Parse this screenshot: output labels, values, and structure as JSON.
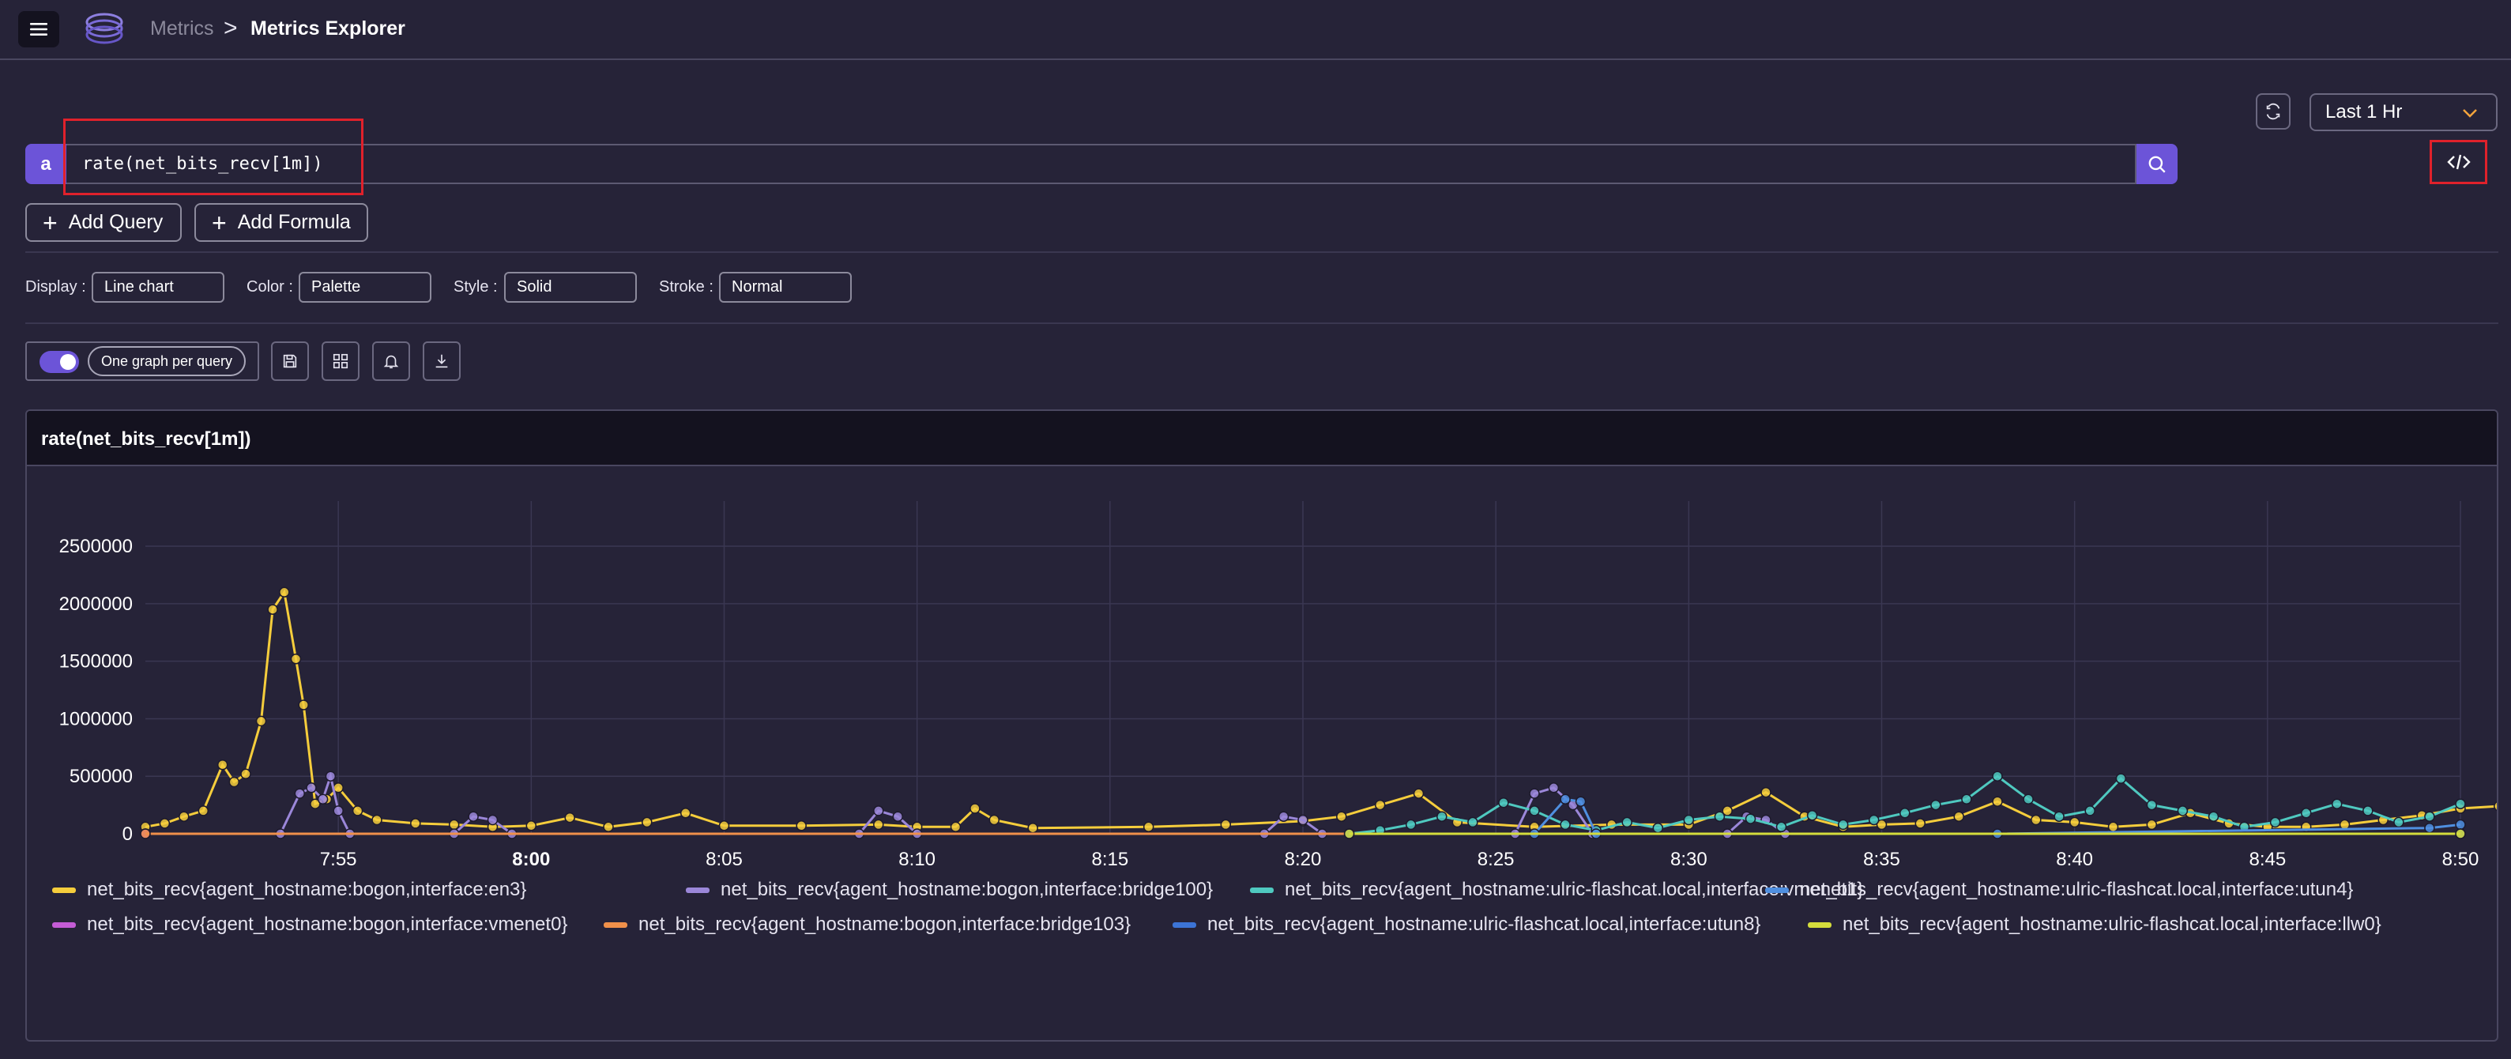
{
  "header": {
    "breadcrumb_parent": "Metrics",
    "breadcrumb_separator": ">",
    "breadcrumb_current": "Metrics Explorer"
  },
  "controls": {
    "time_range": "Last 1 Hr"
  },
  "query": {
    "label": "a",
    "expression": "rate(net_bits_recv[1m])"
  },
  "buttons": {
    "add_query": "Add Query",
    "add_formula": "Add Formula"
  },
  "options": {
    "display_label": "Display :",
    "display_value": "Line chart",
    "color_label": "Color :",
    "color_value": "Palette",
    "style_label": "Style :",
    "style_value": "Solid",
    "stroke_label": "Stroke :",
    "stroke_value": "Normal"
  },
  "toolbar": {
    "one_graph_label": "One graph per query",
    "one_graph_enabled": true
  },
  "panel": {
    "title": "rate(net_bits_recv[1m])"
  },
  "chart_data": {
    "type": "line",
    "title": "rate(net_bits_recv[1m])",
    "x_ticks": [
      "7:55",
      "8:00",
      "8:05",
      "8:10",
      "8:15",
      "8:20",
      "8:25",
      "8:30",
      "8:35",
      "8:40",
      "8:45",
      "8:50"
    ],
    "x_range": [
      "7:50",
      "8:50"
    ],
    "y_ticks": [
      "0",
      "500000",
      "1000000",
      "1500000",
      "2000000",
      "2500000"
    ],
    "ylim": [
      0,
      2700000
    ],
    "grid": true,
    "legend_position": "bottom",
    "series": [
      {
        "name": "net_bits_recv{agent_hostname:bogon,interface:en3}",
        "color": "#f5cd3c",
        "points": [
          [
            0,
            60000
          ],
          [
            0.5,
            90000
          ],
          [
            1,
            150000
          ],
          [
            1.5,
            200000
          ],
          [
            2,
            600000
          ],
          [
            2.3,
            450000
          ],
          [
            2.6,
            520000
          ],
          [
            3,
            980000
          ],
          [
            3.3,
            1950000
          ],
          [
            3.6,
            2100000
          ],
          [
            3.9,
            1520000
          ],
          [
            4.1,
            1120000
          ],
          [
            4.4,
            260000
          ],
          [
            4.7,
            300000
          ],
          [
            5,
            400000
          ],
          [
            5.5,
            200000
          ],
          [
            6,
            120000
          ],
          [
            7,
            90000
          ],
          [
            8,
            80000
          ],
          [
            9,
            60000
          ],
          [
            10,
            70000
          ],
          [
            11,
            140000
          ],
          [
            12,
            60000
          ],
          [
            13,
            100000
          ],
          [
            14,
            180000
          ],
          [
            15,
            70000
          ],
          [
            17,
            70000
          ],
          [
            19,
            80000
          ],
          [
            20,
            60000
          ],
          [
            21,
            60000
          ],
          [
            21.5,
            220000
          ],
          [
            22,
            120000
          ],
          [
            23,
            50000
          ],
          [
            26,
            60000
          ],
          [
            28,
            80000
          ],
          [
            30,
            110000
          ],
          [
            31,
            150000
          ],
          [
            32,
            250000
          ],
          [
            33,
            350000
          ],
          [
            34,
            100000
          ],
          [
            36,
            60000
          ],
          [
            38,
            80000
          ],
          [
            40,
            80000
          ],
          [
            41,
            200000
          ],
          [
            42,
            360000
          ],
          [
            43,
            150000
          ],
          [
            44,
            60000
          ],
          [
            45,
            80000
          ],
          [
            46,
            90000
          ],
          [
            47,
            150000
          ],
          [
            48,
            280000
          ],
          [
            49,
            120000
          ],
          [
            50,
            100000
          ],
          [
            51,
            60000
          ],
          [
            52,
            80000
          ],
          [
            53,
            180000
          ],
          [
            54,
            90000
          ],
          [
            55,
            60000
          ],
          [
            56,
            60000
          ],
          [
            57,
            80000
          ],
          [
            58,
            120000
          ],
          [
            59,
            160000
          ],
          [
            60,
            220000
          ],
          [
            61,
            240000
          ]
        ]
      },
      {
        "name": "net_bits_recv{agent_hostname:bogon,interface:bridge100}",
        "color": "#9b87d9",
        "points": [
          [
            0,
            0
          ],
          [
            3.5,
            0
          ],
          [
            4,
            350000
          ],
          [
            4.3,
            400000
          ],
          [
            4.6,
            300000
          ],
          [
            4.8,
            500000
          ],
          [
            5,
            200000
          ],
          [
            5.3,
            0
          ],
          [
            8,
            0
          ],
          [
            8.5,
            150000
          ],
          [
            9,
            120000
          ],
          [
            9.5,
            0
          ],
          [
            18.5,
            0
          ],
          [
            19,
            200000
          ],
          [
            19.5,
            150000
          ],
          [
            20,
            0
          ],
          [
            29,
            0
          ],
          [
            29.5,
            150000
          ],
          [
            30,
            120000
          ],
          [
            30.5,
            0
          ],
          [
            35.5,
            0
          ],
          [
            36,
            350000
          ],
          [
            36.5,
            400000
          ],
          [
            37,
            250000
          ],
          [
            37.5,
            0
          ],
          [
            41,
            0
          ],
          [
            41.5,
            150000
          ],
          [
            42,
            120000
          ],
          [
            42.5,
            0
          ],
          [
            60,
            0
          ]
        ]
      },
      {
        "name": "net_bits_recv{agent_hostname:ulric-flashcat.local,interface:vmenet1}",
        "color": "#4fc9c0",
        "points": [
          [
            39,
            0
          ],
          [
            40,
            30000
          ],
          [
            41,
            80000
          ],
          [
            42,
            150000
          ],
          [
            43,
            100000
          ],
          [
            44,
            270000
          ],
          [
            45,
            200000
          ],
          [
            46,
            80000
          ],
          [
            47,
            30000
          ],
          [
            48,
            100000
          ],
          [
            49,
            50000
          ],
          [
            50,
            120000
          ],
          [
            51,
            150000
          ],
          [
            52,
            130000
          ],
          [
            53,
            60000
          ],
          [
            54,
            160000
          ],
          [
            55,
            80000
          ],
          [
            56,
            120000
          ],
          [
            57,
            180000
          ],
          [
            58,
            250000
          ],
          [
            59,
            300000
          ],
          [
            60,
            500000
          ],
          [
            61,
            300000
          ],
          [
            62,
            150000
          ],
          [
            63,
            200000
          ],
          [
            64,
            480000
          ],
          [
            65,
            250000
          ],
          [
            66,
            200000
          ],
          [
            67,
            150000
          ],
          [
            68,
            60000
          ],
          [
            69,
            100000
          ],
          [
            70,
            180000
          ],
          [
            71,
            260000
          ],
          [
            72,
            200000
          ],
          [
            73,
            100000
          ],
          [
            74,
            150000
          ],
          [
            75,
            260000
          ]
        ]
      },
      {
        "name": "net_bits_recv{agent_hostname:ulric-flashcat.local,interface:utun4}",
        "color": "#4f8fe0",
        "points": [
          [
            39,
            0
          ],
          [
            45,
            0
          ],
          [
            46,
            300000
          ],
          [
            46.5,
            280000
          ],
          [
            47,
            0
          ],
          [
            60,
            0
          ],
          [
            74,
            50000
          ],
          [
            75,
            80000
          ]
        ]
      },
      {
        "name": "net_bits_recv{agent_hostname:bogon,interface:vmenet0}",
        "color": "#c45cd6",
        "points": [
          [
            0,
            0
          ],
          [
            75,
            0
          ]
        ]
      },
      {
        "name": "net_bits_recv{agent_hostname:bogon,interface:bridge103}",
        "color": "#f0904a",
        "points": [
          [
            0,
            0
          ],
          [
            75,
            0
          ]
        ]
      },
      {
        "name": "net_bits_recv{agent_hostname:ulric-flashcat.local,interface:utun8}",
        "color": "#3c74d6",
        "points": [
          [
            39,
            0
          ],
          [
            75,
            0
          ]
        ]
      },
      {
        "name": "net_bits_recv{agent_hostname:ulric-flashcat.local,interface:llw0}",
        "color": "#d4dc3c",
        "points": [
          [
            39,
            0
          ],
          [
            75,
            0
          ]
        ]
      }
    ]
  }
}
